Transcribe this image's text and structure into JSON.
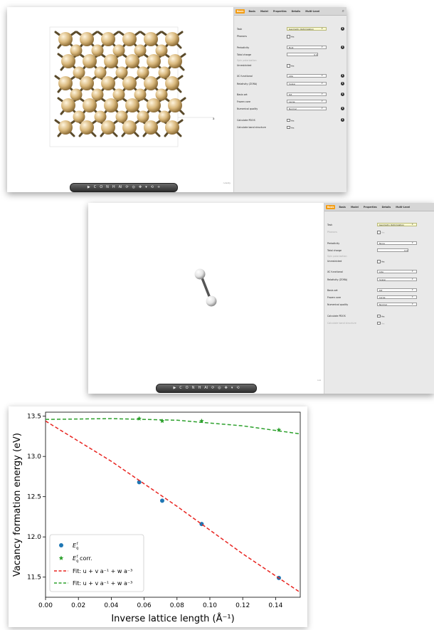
{
  "shot1": {
    "tabs": [
      "Basic",
      "Basis",
      "Model",
      "Properties",
      "Details",
      "Multi-Level"
    ],
    "active_tab": 0,
    "fields": [
      {
        "label": "Task",
        "control": "select",
        "value": "Geometry Optimization",
        "highlight": true,
        "info": true
      },
      {
        "label": "Phonons",
        "control": "check",
        "value": "Yes"
      },
      {
        "label": "Periodicity",
        "control": "select",
        "value": "Bulk",
        "info": true
      },
      {
        "label": "Total charge",
        "control": "input",
        "value": "0.0"
      },
      {
        "label": "Spin polarization",
        "control": "none",
        "value": "",
        "disabled": true
      },
      {
        "label": "Unrestricted",
        "control": "check",
        "value": "Yes"
      },
      {
        "label": "XC functional",
        "control": "select",
        "value": "LDA",
        "info": true
      },
      {
        "label": "Relativity (ZORA)",
        "control": "select",
        "value": "Scalar",
        "info": true
      },
      {
        "label": "Basis set",
        "control": "select",
        "value": "DZ",
        "info": true
      },
      {
        "label": "Frozen core",
        "control": "select",
        "value": "Large"
      },
      {
        "label": "Numerical quality",
        "control": "select",
        "value": "Normal",
        "info": true
      },
      {
        "label": "Calculate PDOS",
        "control": "check",
        "value": "Yes",
        "info": true
      },
      {
        "label": "Calculate band structure",
        "control": "check",
        "value": "Yes"
      }
    ],
    "corner_label": "n-body",
    "toolbar": [
      "▶",
      "C",
      "O",
      "N",
      "H",
      "Al",
      "⟳",
      "◎",
      "✥",
      "▾",
      "⟲",
      "+"
    ]
  },
  "shot2": {
    "tabs": [
      "Basic",
      "Basis",
      "Model",
      "Properties",
      "Details",
      "Multi-Level"
    ],
    "active_tab": 0,
    "fields": [
      {
        "label": "Task",
        "control": "select",
        "value": "Geometry Optimization",
        "highlight": true
      },
      {
        "label": "Phonons",
        "control": "check",
        "value": "Yes",
        "disabled": true
      },
      {
        "label": "Periodicity",
        "control": "select",
        "value": "None"
      },
      {
        "label": "Total charge",
        "control": "input",
        "value": "0.0"
      },
      {
        "label": "Spin polarization",
        "control": "none",
        "value": "",
        "disabled": true
      },
      {
        "label": "Unrestricted",
        "control": "check",
        "value": "Yes"
      },
      {
        "label": "XC functional",
        "control": "select",
        "value": "LDA"
      },
      {
        "label": "Relativity (ZORA)",
        "control": "select",
        "value": "Scalar"
      },
      {
        "label": "Basis set",
        "control": "select",
        "value": "DZ"
      },
      {
        "label": "Frozen core",
        "control": "select",
        "value": "Large"
      },
      {
        "label": "Numerical quality",
        "control": "select",
        "value": "Normal"
      },
      {
        "label": "Calculate PDOS",
        "control": "check",
        "value": "Yes"
      },
      {
        "label": "Calculate band structure",
        "control": "check",
        "value": "Yes",
        "disabled": true
      }
    ],
    "corner_label": "n-b",
    "toolbar": [
      "▶",
      "C",
      "O",
      "N",
      "H",
      "Al",
      "⟳",
      "◎",
      "✥",
      "▾",
      "⟲"
    ]
  },
  "chart_data": {
    "type": "scatter",
    "xlabel": "Inverse lattice length (Å⁻¹)",
    "ylabel": "Vacancy formation energy (eV)",
    "xlim": [
      0.0,
      0.155
    ],
    "ylim": [
      11.25,
      13.55
    ],
    "xticks": [
      0.0,
      0.02,
      0.04,
      0.06,
      0.08,
      0.1,
      0.12,
      0.14
    ],
    "xtick_labels": [
      "0.00",
      "0.02",
      "0.04",
      "0.06",
      "0.08",
      "0.10",
      "0.12",
      "0.14"
    ],
    "yticks": [
      11.5,
      12.0,
      12.5,
      13.0,
      13.5
    ],
    "ytick_labels": [
      "11.5",
      "12.0",
      "12.5",
      "13.0",
      "13.5"
    ],
    "legend_position": "lower-left",
    "series": [
      {
        "name": "E_q^f",
        "marker": "circle",
        "color": "#1f77b4",
        "x": [
          0.057,
          0.071,
          0.095,
          0.142
        ],
        "y": [
          12.68,
          12.45,
          12.16,
          11.49
        ]
      },
      {
        "name": "E_q^f corr.",
        "marker": "star",
        "color": "#2ca02c",
        "x": [
          0.057,
          0.071,
          0.095,
          0.142
        ],
        "y": [
          13.47,
          13.44,
          13.44,
          13.33
        ]
      },
      {
        "name": "Fit: u + v a⁻¹ + w a⁻³",
        "type": "line",
        "style": "dashed",
        "color": "#e8231f",
        "x": [
          0.0,
          0.04,
          0.08,
          0.12,
          0.155
        ],
        "y": [
          13.44,
          12.94,
          12.38,
          11.79,
          11.31
        ]
      },
      {
        "name": "Fit: u + v a⁻¹ + w a⁻³",
        "type": "line",
        "style": "dashed",
        "color": "#2ca02c",
        "x": [
          0.0,
          0.04,
          0.08,
          0.12,
          0.155
        ],
        "y": [
          13.46,
          13.47,
          13.45,
          13.38,
          13.28
        ]
      }
    ]
  }
}
